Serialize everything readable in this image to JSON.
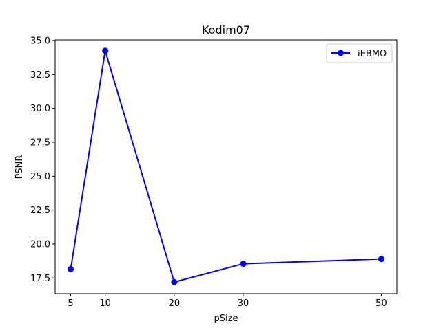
{
  "chart_data": {
    "type": "line",
    "title": "Kodim07",
    "xlabel": "pSize",
    "ylabel": "PSNR",
    "x": [
      5,
      10,
      20,
      30,
      50
    ],
    "xticks": [
      5,
      10,
      20,
      30,
      50
    ],
    "xlim": [
      2.75,
      52.25
    ],
    "yticks": [
      17.5,
      20.0,
      22.5,
      25.0,
      27.5,
      30.0,
      32.5,
      35.0
    ],
    "ylim": [
      16.35,
      35.05
    ],
    "series": [
      {
        "name": "iEBMO",
        "values": [
          18.15,
          34.25,
          17.2,
          18.55,
          18.9
        ],
        "color": "#0000ff",
        "marker": "circle"
      }
    ],
    "grid": false,
    "legend_position": "top-right"
  }
}
